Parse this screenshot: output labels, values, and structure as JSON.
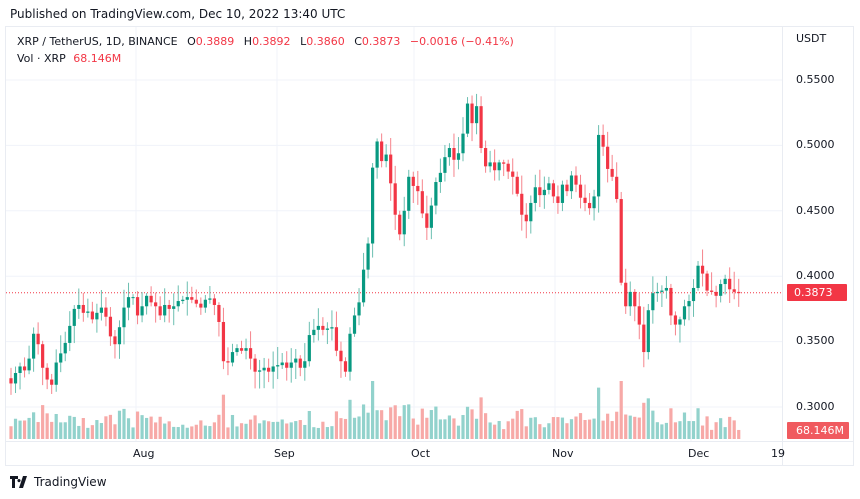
{
  "header": {
    "published": "Published on TradingView.com, Dec 10, 2022 13:40 UTC"
  },
  "legend": {
    "symbol": "XRP / TetherUS, 1D, BINANCE",
    "o_label": "O",
    "o_value": "0.3889",
    "h_label": "H",
    "h_value": "0.3892",
    "l_label": "L",
    "l_value": "0.3860",
    "c_label": "C",
    "c_value": "0.3873",
    "change": "−0.0016 (−0.41%)",
    "vol_label": "Vol · XRP",
    "vol_value": "68.146M"
  },
  "price_axis": {
    "currency": "USDT",
    "ticks": [
      "0.5500",
      "0.5000",
      "0.4500",
      "0.4000",
      "0.3500",
      "0.3000"
    ],
    "last_price": "0.3873",
    "last_volume": "68.146M"
  },
  "time_axis": {
    "ticks": [
      "Aug",
      "Sep",
      "Oct",
      "Nov",
      "Dec",
      "19"
    ]
  },
  "footer": {
    "brand": "TradingView"
  },
  "colors": {
    "up": "#089981",
    "down": "#f23645",
    "vol_up": "#92d2cc",
    "vol_down": "#f7a9a7",
    "grid": "#f0f3fa"
  },
  "chart_data": {
    "type": "candlestick",
    "title": "XRP / TetherUS, 1D, BINANCE",
    "xlabel": "",
    "ylabel": "USDT",
    "ylim": [
      0.28,
      0.565
    ],
    "x_ticks": [
      "Aug",
      "Sep",
      "Oct",
      "Nov",
      "Dec",
      "19"
    ],
    "y_ticks": [
      0.3,
      0.35,
      0.4,
      0.45,
      0.5,
      0.55
    ],
    "last_close": 0.3873,
    "last_volume": "68.146M",
    "closes": [
      0.318,
      0.326,
      0.331,
      0.328,
      0.337,
      0.356,
      0.348,
      0.33,
      0.321,
      0.317,
      0.334,
      0.341,
      0.349,
      0.362,
      0.375,
      0.378,
      0.372,
      0.373,
      0.367,
      0.372,
      0.376,
      0.369,
      0.354,
      0.348,
      0.361,
      0.376,
      0.384,
      0.384,
      0.37,
      0.377,
      0.385,
      0.38,
      0.377,
      0.37,
      0.378,
      0.375,
      0.377,
      0.381,
      0.382,
      0.384,
      0.382,
      0.379,
      0.376,
      0.382,
      0.383,
      0.378,
      0.365,
      0.335,
      0.334,
      0.342,
      0.345,
      0.343,
      0.345,
      0.337,
      0.327,
      0.328,
      0.33,
      0.327,
      0.331,
      0.332,
      0.334,
      0.33,
      0.334,
      0.337,
      0.33,
      0.335,
      0.355,
      0.359,
      0.362,
      0.359,
      0.36,
      0.361,
      0.343,
      0.335,
      0.327,
      0.356,
      0.37,
      0.38,
      0.405,
      0.425,
      0.483,
      0.503,
      0.488,
      0.493,
      0.471,
      0.447,
      0.432,
      0.45,
      0.476,
      0.469,
      0.465,
      0.448,
      0.437,
      0.454,
      0.472,
      0.479,
      0.491,
      0.498,
      0.489,
      0.494,
      0.509,
      0.532,
      0.517,
      0.53,
      0.498,
      0.484,
      0.487,
      0.481,
      0.487,
      0.486,
      0.48,
      0.476,
      0.463,
      0.447,
      0.442,
      0.456,
      0.468,
      0.462,
      0.466,
      0.471,
      0.461,
      0.456,
      0.47,
      0.465,
      0.477,
      0.47,
      0.46,
      0.456,
      0.452,
      0.461,
      0.508,
      0.499,
      0.482,
      0.476,
      0.459,
      0.395,
      0.377,
      0.388,
      0.377,
      0.363,
      0.342,
      0.374,
      0.387,
      0.388,
      0.389,
      0.391,
      0.37,
      0.363,
      0.367,
      0.377,
      0.381,
      0.391,
      0.408,
      0.402,
      0.389,
      0.388,
      0.385,
      0.394,
      0.398,
      0.39,
      0.388,
      0.387
    ]
  }
}
